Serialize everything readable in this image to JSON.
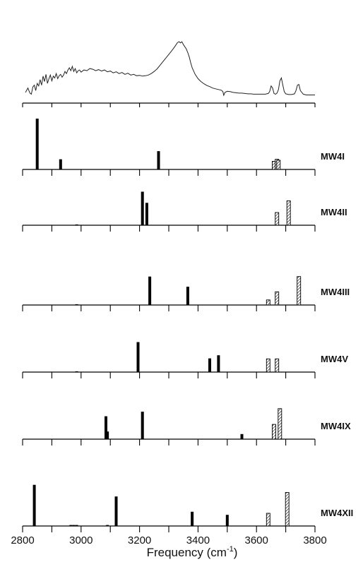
{
  "chart_data": {
    "type": "bar",
    "xlabel_main": "Frequency (cm",
    "xlabel_sup": "-1",
    "xlabel_end": ")",
    "xlim": [
      2800,
      3800
    ],
    "xticks": [
      2800,
      3000,
      3200,
      3400,
      3600,
      3800
    ],
    "minor_step": 100,
    "spectrum": {
      "x": [
        2810,
        2818,
        2825,
        2830,
        2835,
        2840,
        2845,
        2850,
        2855,
        2860,
        2865,
        2870,
        2875,
        2880,
        2885,
        2890,
        2895,
        2900,
        2905,
        2910,
        2915,
        2920,
        2925,
        2930,
        2935,
        2940,
        2945,
        2950,
        2955,
        2960,
        2965,
        2970,
        2975,
        2980,
        2985,
        2990,
        2995,
        3000,
        3010,
        3020,
        3030,
        3040,
        3050,
        3060,
        3070,
        3080,
        3090,
        3100,
        3110,
        3120,
        3130,
        3140,
        3150,
        3160,
        3170,
        3180,
        3190,
        3200,
        3210,
        3220,
        3230,
        3240,
        3250,
        3260,
        3270,
        3280,
        3290,
        3300,
        3310,
        3320,
        3325,
        3330,
        3335,
        3340,
        3345,
        3350,
        3355,
        3360,
        3365,
        3370,
        3375,
        3380,
        3390,
        3400,
        3410,
        3420,
        3430,
        3440,
        3450,
        3460,
        3470,
        3480,
        3485,
        3488,
        3492,
        3500,
        3510,
        3520,
        3530,
        3540,
        3550,
        3560,
        3570,
        3580,
        3590,
        3600,
        3610,
        3620,
        3630,
        3640,
        3645,
        3650,
        3655,
        3660,
        3665,
        3670,
        3675,
        3680,
        3685,
        3690,
        3695,
        3700,
        3705,
        3710,
        3720,
        3730,
        3735,
        3740,
        3745,
        3750,
        3760,
        3770,
        3780,
        3790,
        3800
      ],
      "y": [
        0.1,
        0.22,
        0.08,
        0.05,
        0.25,
        0.3,
        0.15,
        0.35,
        0.28,
        0.45,
        0.3,
        0.55,
        0.4,
        0.6,
        0.35,
        0.48,
        0.58,
        0.42,
        0.55,
        0.5,
        0.62,
        0.48,
        0.56,
        0.6,
        0.52,
        0.58,
        0.68,
        0.62,
        0.72,
        0.78,
        0.7,
        0.82,
        0.68,
        0.76,
        0.64,
        0.7,
        0.72,
        0.66,
        0.72,
        0.7,
        0.76,
        0.74,
        0.7,
        0.73,
        0.69,
        0.72,
        0.67,
        0.69,
        0.64,
        0.67,
        0.62,
        0.65,
        0.6,
        0.63,
        0.58,
        0.6,
        0.56,
        0.57,
        0.55,
        0.56,
        0.58,
        0.62,
        0.68,
        0.75,
        0.85,
        0.95,
        1.05,
        1.15,
        1.25,
        1.36,
        1.42,
        1.48,
        1.5,
        1.47,
        1.5,
        1.42,
        1.36,
        1.3,
        1.2,
        1.08,
        0.92,
        0.78,
        0.6,
        0.48,
        0.4,
        0.34,
        0.29,
        0.26,
        0.22,
        0.2,
        0.18,
        0.16,
        0.12,
        0.02,
        0.1,
        0.13,
        0.12,
        0.1,
        0.09,
        0.08,
        0.08,
        0.07,
        0.06,
        0.06,
        0.05,
        0.05,
        0.05,
        0.05,
        0.05,
        0.07,
        0.12,
        0.28,
        0.22,
        0.07,
        0.05,
        0.08,
        0.18,
        0.42,
        0.5,
        0.3,
        0.12,
        0.06,
        0.05,
        0.04,
        0.04,
        0.06,
        0.15,
        0.3,
        0.32,
        0.15,
        0.05,
        0.03,
        0.03,
        0.03,
        0.03
      ],
      "ymax": 1.6
    },
    "panels": [
      {
        "name": "MW4I",
        "solid": [
          [
            2850,
            1.0
          ],
          [
            2930,
            0.2
          ],
          [
            3265,
            0.36
          ]
        ],
        "hatched": [
          [
            3660,
            0.16
          ],
          [
            3670,
            0.2
          ],
          [
            3675,
            0.18
          ]
        ],
        "small": []
      },
      {
        "name": "MW4II",
        "solid": [
          [
            3210,
            0.66
          ],
          [
            3225,
            0.44
          ]
        ],
        "hatched": [
          [
            3670,
            0.25
          ],
          [
            3710,
            0.48
          ]
        ],
        "small": [
          [
            2985,
            0.015
          ]
        ]
      },
      {
        "name": "MW4III",
        "solid": [
          [
            3235,
            0.56
          ],
          [
            3365,
            0.36
          ]
        ],
        "hatched": [
          [
            3640,
            0.1
          ],
          [
            3670,
            0.26
          ],
          [
            3745,
            0.56
          ]
        ],
        "small": [
          [
            2985,
            0.015
          ]
        ]
      },
      {
        "name": "MW4V",
        "solid": [
          [
            3195,
            0.59
          ],
          [
            3440,
            0.27
          ],
          [
            3470,
            0.33
          ]
        ],
        "hatched": [
          [
            3640,
            0.26
          ],
          [
            3670,
            0.26
          ]
        ],
        "small": [
          [
            2985,
            0.015
          ]
        ]
      },
      {
        "name": "MW4IX",
        "solid": [
          [
            3085,
            0.45
          ],
          [
            3090,
            0.15
          ],
          [
            3210,
            0.54
          ],
          [
            3550,
            0.1
          ]
        ],
        "hatched": [
          [
            3660,
            0.29
          ],
          [
            3680,
            0.6
          ]
        ],
        "small": []
      },
      {
        "name": "MW4XII",
        "solid": [
          [
            2840,
            0.81
          ],
          [
            3120,
            0.58
          ],
          [
            3380,
            0.28
          ],
          [
            3500,
            0.22
          ]
        ],
        "hatched": [
          [
            3640,
            0.25
          ],
          [
            3705,
            0.66
          ]
        ],
        "small": [
          [
            2965,
            0.02
          ],
          [
            2975,
            0.02
          ],
          [
            2985,
            0.02
          ],
          [
            3090,
            0.02
          ]
        ]
      }
    ]
  }
}
